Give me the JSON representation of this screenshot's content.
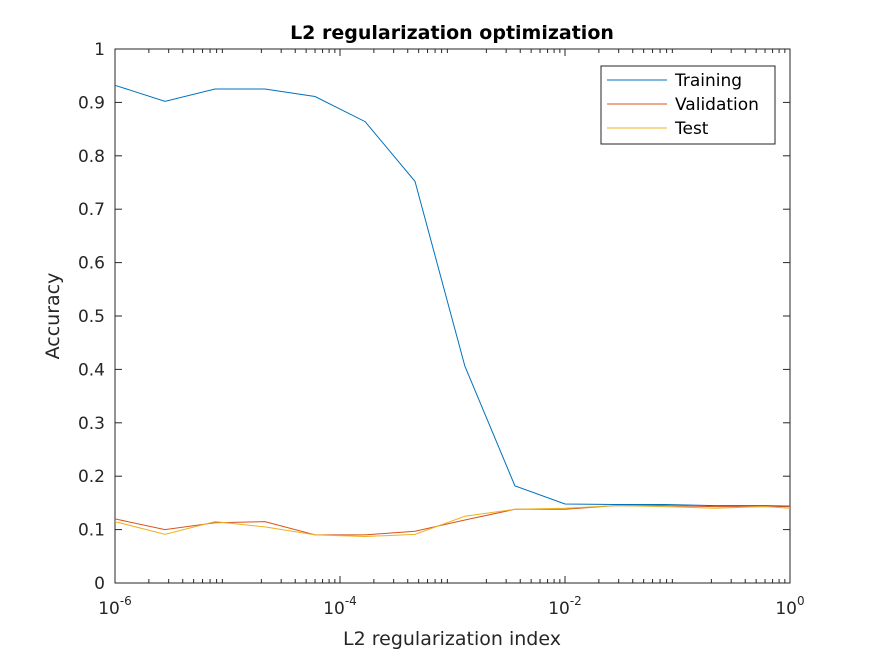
{
  "chart_data": {
    "type": "line",
    "title": "L2 regularization optimization",
    "xlabel": "L2 regularization index",
    "ylabel": "Accuracy",
    "xscale": "log",
    "xlim": [
      1e-06,
      1
    ],
    "ylim": [
      0,
      1
    ],
    "x_ticks": [
      {
        "value": 1e-06,
        "base": "10",
        "exp": "-6"
      },
      {
        "value": 0.0001,
        "base": "10",
        "exp": "-4"
      },
      {
        "value": 0.01,
        "base": "10",
        "exp": "-2"
      },
      {
        "value": 1,
        "base": "10",
        "exp": "0"
      }
    ],
    "y_ticks": [
      "0",
      "0.1",
      "0.2",
      "0.3",
      "0.4",
      "0.5",
      "0.6",
      "0.7",
      "0.8",
      "0.9",
      "1"
    ],
    "grid": false,
    "legend_position": "top-right",
    "x": [
      1e-06,
      2.78e-06,
      7.74e-06,
      2.15e-05,
      5.99e-05,
      0.000167,
      0.000464,
      0.00129,
      0.00359,
      0.01,
      0.0278,
      0.0774,
      0.215,
      0.599,
      1
    ],
    "series": [
      {
        "name": "Training",
        "color": "#0072BD",
        "values": [
          0.932,
          0.902,
          0.925,
          0.925,
          0.911,
          0.864,
          0.752,
          0.406,
          0.182,
          0.148,
          0.147,
          0.147,
          0.145,
          0.145,
          0.144
        ]
      },
      {
        "name": "Validation",
        "color": "#D95319",
        "values": [
          0.12,
          0.1,
          0.113,
          0.115,
          0.09,
          0.09,
          0.097,
          0.118,
          0.138,
          0.138,
          0.145,
          0.145,
          0.143,
          0.143,
          0.143
        ]
      },
      {
        "name": "Test",
        "color": "#EDB120",
        "values": [
          0.115,
          0.091,
          0.115,
          0.105,
          0.09,
          0.087,
          0.091,
          0.125,
          0.138,
          0.14,
          0.145,
          0.143,
          0.14,
          0.143,
          0.14
        ]
      }
    ]
  }
}
